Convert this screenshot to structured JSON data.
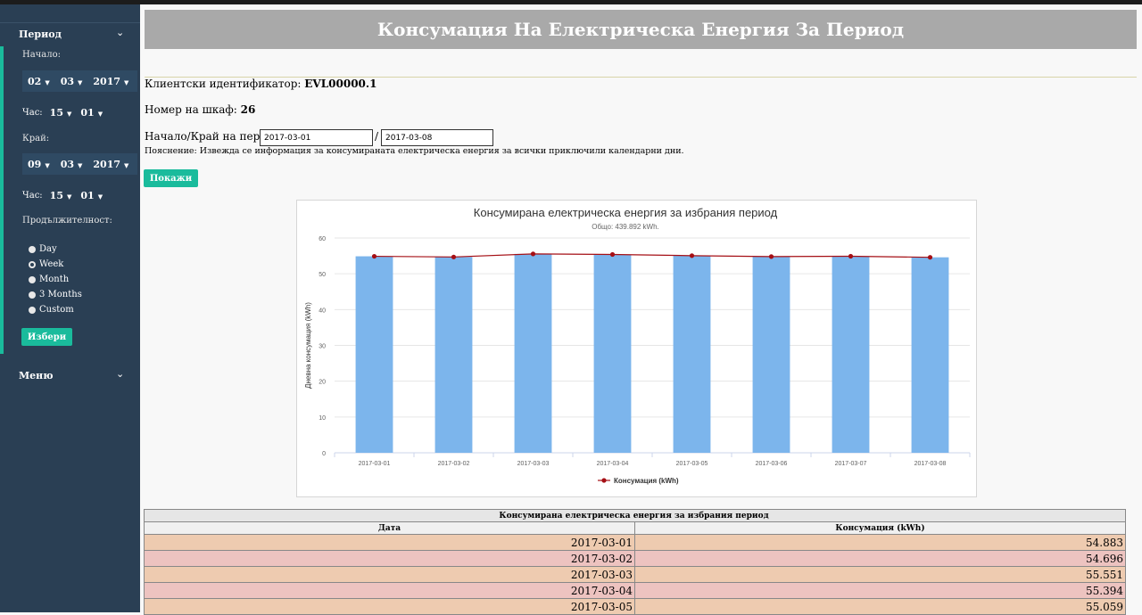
{
  "sidebar": {
    "period_title": "Период",
    "start_label": "Начало:",
    "start_day": "02",
    "start_month": "03",
    "start_year": "2017",
    "start_hour_label": "Час:",
    "start_hour": "15",
    "start_minute": "01",
    "end_label": "Край:",
    "end_day": "09",
    "end_month": "03",
    "end_year": "2017",
    "end_hour_label": "Час:",
    "end_hour": "15",
    "end_minute": "01",
    "duration_label": "Продължителност:",
    "durations": [
      "Day",
      "Week",
      "Month",
      "3 Months",
      "Custom"
    ],
    "selected_duration": "Week",
    "choose_button": "Избери",
    "menu_title": "Меню"
  },
  "main": {
    "title": "Консумация На Електрическа Енергия За Период",
    "client_id_label": "Клиентски идентификатор:",
    "client_id": "EVL00000.1",
    "cabinet_label": "Номер на шкаф:",
    "cabinet": "26",
    "period_label": "Начало/Край на период:",
    "period_start": "2017-03-01",
    "period_separator": "/",
    "period_end": "2017-03-08",
    "note": "Пояснение: Извежда се информация за консумираната електрическа енергия за всички приключили календарни дни.",
    "show_button": "Покажи"
  },
  "chart_data": {
    "type": "bar",
    "title": "Консумирана електрическа енергия за избрания период",
    "subtitle": "Общо: 439.892 kWh.",
    "ylabel": "Дневна консумация (kWh)",
    "xlabel": "",
    "ylim": [
      0,
      60
    ],
    "yticks": [
      0,
      10,
      20,
      30,
      40,
      50,
      60
    ],
    "categories": [
      "2017-03-01",
      "2017-03-02",
      "2017-03-03",
      "2017-03-04",
      "2017-03-05",
      "2017-03-06",
      "2017-03-07",
      "2017-03-08"
    ],
    "series": [
      {
        "name": "",
        "kind": "bar",
        "values": [
          54.883,
          54.696,
          55.551,
          55.394,
          55.059,
          54.8,
          54.9,
          54.6
        ]
      },
      {
        "name": "Консумация (kWh)",
        "kind": "line",
        "values": [
          54.883,
          54.696,
          55.551,
          55.394,
          55.059,
          54.8,
          54.9,
          54.6
        ]
      }
    ],
    "colors": {
      "bar": "#7cb5ec",
      "line": "#a50f15"
    },
    "legend": "bottom-center",
    "grid": true
  },
  "table": {
    "caption": "Консумирана електрическа енергия за избрания период",
    "headers": [
      "Дата",
      "Консумация (kWh)"
    ],
    "rows": [
      [
        "2017-03-01",
        "54.883"
      ],
      [
        "2017-03-02",
        "54.696"
      ],
      [
        "2017-03-03",
        "55.551"
      ],
      [
        "2017-03-04",
        "55.394"
      ],
      [
        "2017-03-05",
        "55.059"
      ]
    ]
  }
}
